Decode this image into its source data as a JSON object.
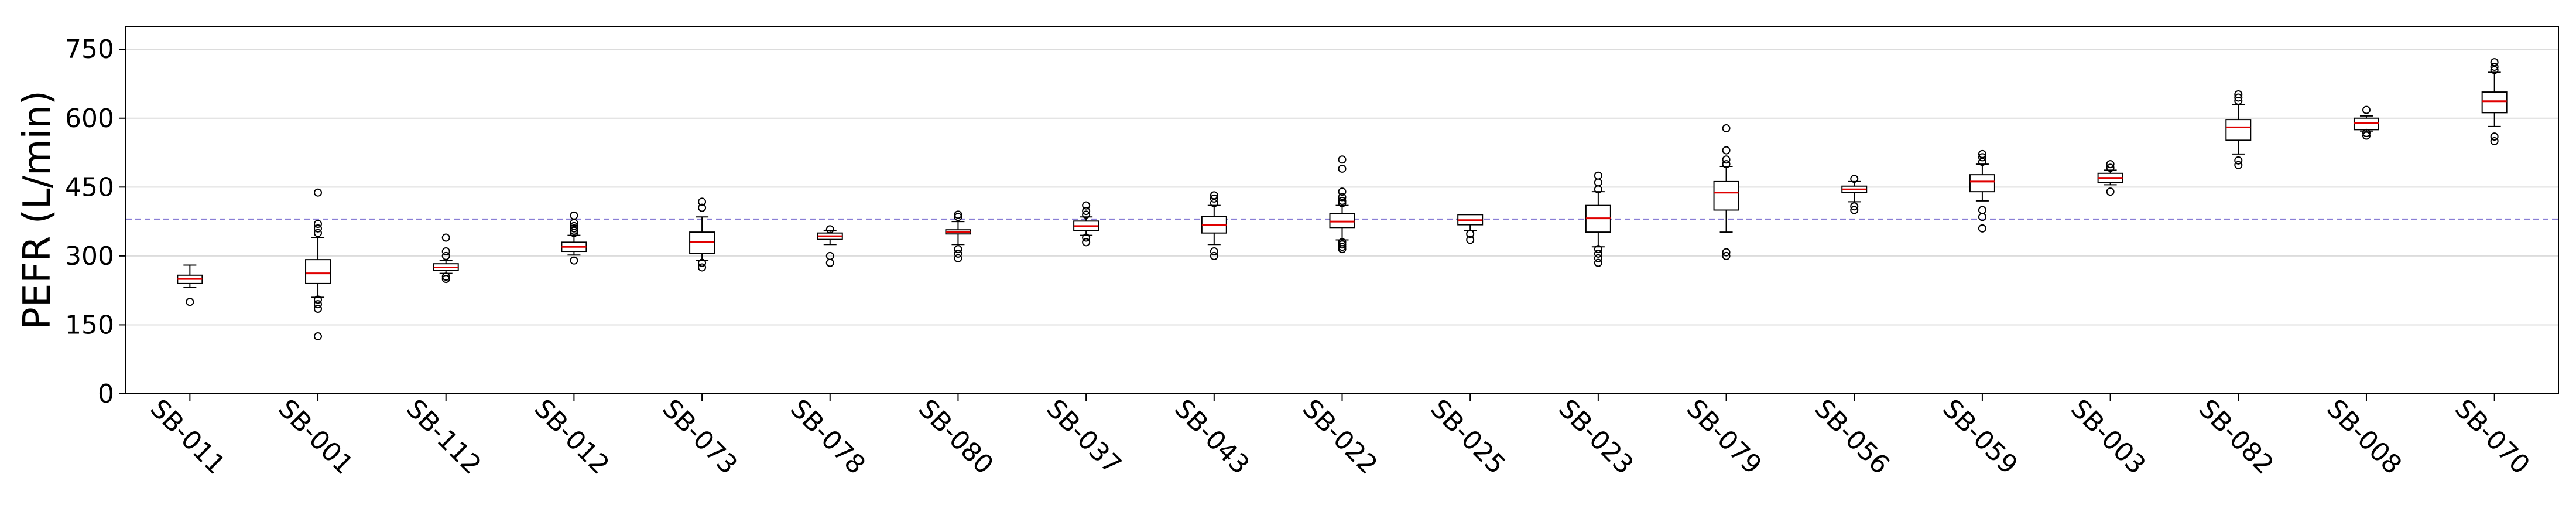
{
  "chart_data": {
    "type": "box",
    "title": "",
    "xlabel": "",
    "ylabel": "PEFR (L/min)",
    "ylim": [
      0,
      800
    ],
    "yticks": [
      0,
      150,
      300,
      450,
      600,
      750
    ],
    "grid": "horizontal",
    "reference_line": {
      "value": 380,
      "style": "dashed",
      "color": "#8a7fd6"
    },
    "box_color": "#000000",
    "median_color": "#e00000",
    "categories": [
      "SB-011",
      "SB-001",
      "SB-112",
      "SB-012",
      "SB-073",
      "SB-078",
      "SB-080",
      "SB-037",
      "SB-043",
      "SB-022",
      "SB-025",
      "SB-023",
      "SB-079",
      "SB-056",
      "SB-059",
      "SB-003",
      "SB-082",
      "SB-008",
      "SB-070"
    ],
    "boxes": [
      {
        "whislo": 232,
        "q1": 240,
        "med": 250,
        "q3": 258,
        "whishi": 280,
        "fliers": [
          200
        ]
      },
      {
        "whislo": 210,
        "q1": 240,
        "med": 262,
        "q3": 292,
        "whishi": 340,
        "fliers": [
          125,
          185,
          195,
          205,
          350,
          360,
          370,
          438
        ]
      },
      {
        "whislo": 262,
        "q1": 268,
        "med": 275,
        "q3": 283,
        "whishi": 290,
        "fliers": [
          250,
          255,
          300,
          310,
          340
        ]
      },
      {
        "whislo": 302,
        "q1": 310,
        "med": 320,
        "q3": 330,
        "whishi": 345,
        "fliers": [
          290,
          350,
          355,
          360,
          365,
          372,
          388
        ]
      },
      {
        "whislo": 290,
        "q1": 305,
        "med": 330,
        "q3": 352,
        "whishi": 385,
        "fliers": [
          275,
          285,
          405,
          418
        ]
      },
      {
        "whislo": 325,
        "q1": 336,
        "med": 343,
        "q3": 350,
        "whishi": 355,
        "fliers": [
          285,
          300,
          358
        ]
      },
      {
        "whislo": 325,
        "q1": 348,
        "med": 352,
        "q3": 357,
        "whishi": 375,
        "fliers": [
          295,
          305,
          315,
          385,
          390
        ]
      },
      {
        "whislo": 345,
        "q1": 355,
        "med": 365,
        "q3": 376,
        "whishi": 385,
        "fliers": [
          330,
          340,
          390,
          398,
          410
        ]
      },
      {
        "whislo": 325,
        "q1": 350,
        "med": 368,
        "q3": 386,
        "whishi": 410,
        "fliers": [
          300,
          310,
          415,
          425,
          432
        ]
      },
      {
        "whislo": 335,
        "q1": 362,
        "med": 375,
        "q3": 392,
        "whishi": 410,
        "fliers": [
          315,
          320,
          325,
          330,
          415,
          420,
          428,
          440,
          490,
          510
        ]
      },
      {
        "whislo": 355,
        "q1": 368,
        "med": 378,
        "q3": 390,
        "whishi": 390,
        "fliers": [
          335,
          348
        ]
      },
      {
        "whislo": 320,
        "q1": 352,
        "med": 382,
        "q3": 410,
        "whishi": 440,
        "fliers": [
          285,
          295,
          305,
          315,
          445,
          460,
          475
        ]
      },
      {
        "whislo": 352,
        "q1": 400,
        "med": 438,
        "q3": 462,
        "whishi": 495,
        "fliers": [
          300,
          308,
          500,
          510,
          530,
          578
        ]
      },
      {
        "whislo": 418,
        "q1": 438,
        "med": 445,
        "q3": 452,
        "whishi": 462,
        "fliers": [
          400,
          408,
          468
        ]
      },
      {
        "whislo": 420,
        "q1": 440,
        "med": 462,
        "q3": 477,
        "whishi": 500,
        "fliers": [
          360,
          385,
          400,
          505,
          515,
          522
        ]
      },
      {
        "whislo": 455,
        "q1": 460,
        "med": 470,
        "q3": 480,
        "whishi": 487,
        "fliers": [
          440,
          492,
          500
        ]
      },
      {
        "whislo": 522,
        "q1": 552,
        "med": 580,
        "q3": 597,
        "whishi": 630,
        "fliers": [
          498,
          508,
          638,
          645,
          652
        ]
      },
      {
        "whislo": 572,
        "q1": 575,
        "med": 590,
        "q3": 600,
        "whishi": 605,
        "fliers": [
          562,
          568,
          618
        ]
      },
      {
        "whislo": 582,
        "q1": 612,
        "med": 637,
        "q3": 657,
        "whishi": 700,
        "fliers": [
          550,
          560,
          705,
          712,
          722
        ]
      }
    ]
  }
}
